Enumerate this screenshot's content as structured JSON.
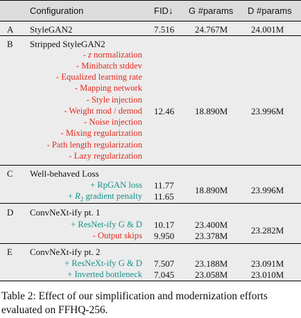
{
  "table": {
    "columns": {
      "configuration": "Configuration",
      "fid": "FID↓",
      "g_params": "G #params",
      "d_params": "D #params"
    },
    "rows": {
      "A": {
        "id": "A",
        "name": "StyleGAN2",
        "fid": "7.516",
        "g": "24.767M",
        "d": "24.001M"
      },
      "B": {
        "id": "B",
        "name": "Stripped StyleGAN2",
        "fid": "12.46",
        "g": "18.890M",
        "d": "23.996M",
        "items": [
          {
            "sign": "- ",
            "var": "z",
            "text": " normalization"
          },
          {
            "text": "- Minibatch stddev"
          },
          {
            "text": "- Equalized learning rate"
          },
          {
            "text": "- Mapping network"
          },
          {
            "text": "- Style injection"
          },
          {
            "text": "- Weight mod / demod"
          },
          {
            "text": "- Noise injection"
          },
          {
            "text": "- Mixing regularization"
          },
          {
            "text": "- Path length regularization"
          },
          {
            "text": "- Lazy regularization"
          }
        ]
      },
      "C": {
        "id": "C",
        "name": "Well-behaved Loss",
        "g": "18.890M",
        "d": "23.996M",
        "items": [
          {
            "text": "+ RpGAN loss",
            "fid": "11.77"
          },
          {
            "sign": "+ ",
            "var": "R",
            "sub": "2",
            "text": " gradient penalty",
            "fid": "11.65"
          }
        ]
      },
      "D": {
        "id": "D",
        "name": "ConvNeXt-ify pt. 1",
        "d": "23.282M",
        "items": [
          {
            "text": "+ ResNet-ify G & D",
            "fid": "10.17",
            "g": "23.400M"
          },
          {
            "text": "- Output skips",
            "fid": "9.950",
            "g": "23.378M"
          }
        ]
      },
      "E": {
        "id": "E",
        "name": "ConvNeXt-ify pt. 2",
        "items": [
          {
            "text": "+ ResNeXt-ify G & D",
            "fid": "7.507",
            "g": "23.188M",
            "d": "23.091M"
          },
          {
            "text": "+ Inverted bottleneck",
            "fid": "7.045",
            "g": "23.058M",
            "d": "23.010M"
          }
        ]
      }
    },
    "colors": {
      "removed": "#e4281e",
      "added": "#16908a",
      "header_bg": "#dcdcdc",
      "row_bg": "#ececec"
    }
  },
  "caption": "Table 2: Effect of our simplification and modernization efforts evaluated on FFHQ-256."
}
